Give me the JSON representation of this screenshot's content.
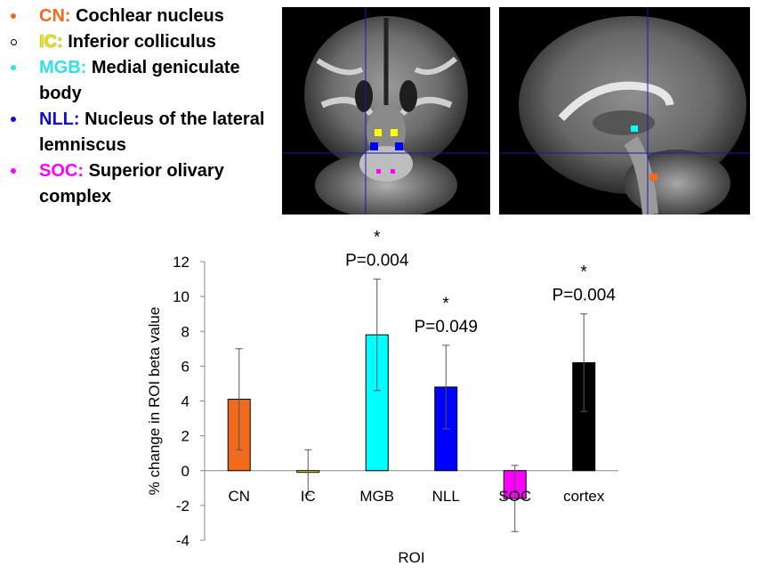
{
  "legend": {
    "items": [
      {
        "abbr": "CN:",
        "text": "Cochlear nucleus",
        "color": "#f26b1d",
        "marker": "filled"
      },
      {
        "abbr": "IC:",
        "text": "Inferior colliculus",
        "color": "#ffff00",
        "marker": "ring"
      },
      {
        "abbr": "MGB:",
        "text": "Medial geniculate body",
        "color": "#33e0e0",
        "marker": "filled"
      },
      {
        "abbr": "NLL:",
        "text": "Nucleus of the lateral lemniscus",
        "color": "#1010cc",
        "marker": "filled"
      },
      {
        "abbr": "SOC:",
        "text": "Superior olivary complex",
        "color": "#ff00ff",
        "marker": "filled"
      }
    ]
  },
  "images": {
    "coronal": "coronal-brain-mri",
    "sagittal": "sagittal-brain-mri",
    "crosshair_color": "#1a1aaa"
  },
  "chart_data": {
    "type": "bar",
    "categories": [
      "CN",
      "IC",
      "MGB",
      "NLL",
      "SOC",
      "cortex"
    ],
    "values": [
      4.1,
      -0.1,
      7.8,
      4.8,
      -1.6,
      6.2
    ],
    "errors": [
      2.9,
      1.3,
      3.2,
      2.4,
      1.9,
      2.8
    ],
    "colors": [
      "#f26b1d",
      "#ffff00",
      "#00ffff",
      "#0000ff",
      "#ff00ff",
      "#000000"
    ],
    "significance": [
      "",
      "",
      "P=0.004",
      "P=0.049",
      "",
      "P=0.004"
    ],
    "significance_marks": [
      "",
      "",
      "*",
      "*",
      "",
      "*"
    ],
    "xlabel": "ROI",
    "ylabel": "% change in ROI beta value",
    "ylim": [
      -4,
      12
    ],
    "yticks": [
      -4,
      -2,
      0,
      2,
      4,
      6,
      8,
      10,
      12
    ],
    "grid": false,
    "legend": "none"
  }
}
